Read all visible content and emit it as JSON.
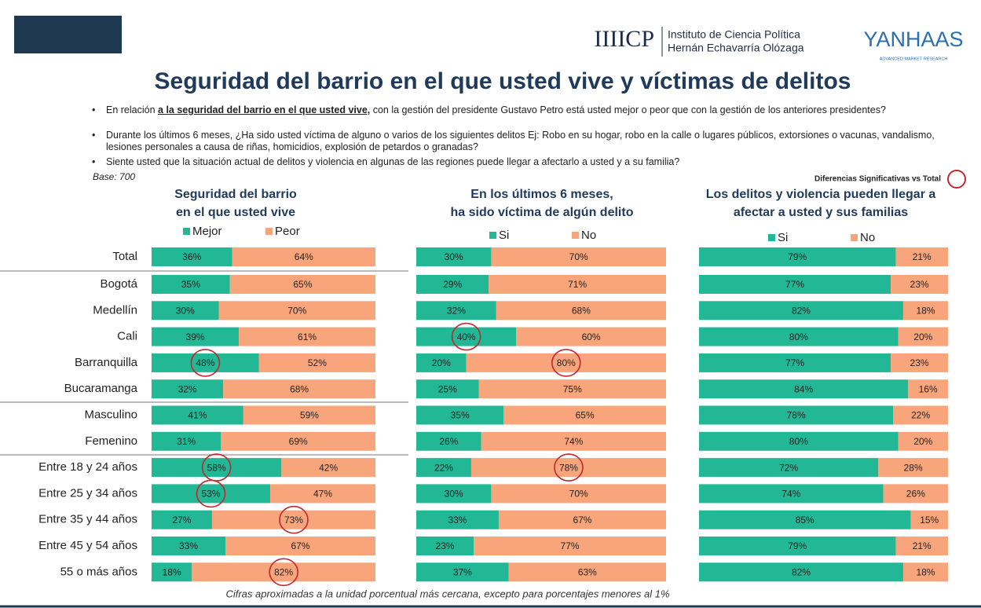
{
  "header": {
    "logo1": "IIIICP",
    "logo1_text": [
      "Instituto de Ciencia Política",
      "Hernán Echavarría Olózaga"
    ],
    "logo2": "YANHAAS",
    "logo2_sub": "ADVANCED MARKET RESEARCH"
  },
  "title": "Seguridad del barrio en el que usted vive y víctimas de delitos",
  "questions": [
    [
      "En relación ",
      "a la seguridad del barrio en el que usted vive,",
      " con la gestión del presidente Gustavo Petro está usted mejor o peor que con la gestión de los anteriores presidentes?"
    ],
    [
      "Durante los últimos 6 meses, ¿Ha sido usted víctima de alguno o varios de los siguientes delitos Ej: Robo en su hogar, robo en la calle o lugares públicos, extorsiones o vacunas, vandalismo, lesiones personales a causa de riñas, homicidios, explosión de petardos o granadas?"
    ],
    [
      "Siente usted que la situación actual  de delitos y violencia en algunas de las  regiones puede llegar a afectarlo  a usted y a su familia?"
    ]
  ],
  "base": "Base: 700",
  "significance_note": "Diferencias Significativas vs Total",
  "footnote": "Cifras aproximadas a la unidad porcentual más cercana, excepto para porcentajes menores al 1%",
  "categories": [
    "Total",
    "Bogotá",
    "Medellín",
    "Cali",
    "Barranquilla",
    "Bucaramanga",
    "Masculino",
    "Femenino",
    "Entre 18 y 24 años",
    "Entre 25 y 34 años",
    "Entre 35 y 44 años",
    "Entre 45 y 54 años",
    "55 o más años"
  ],
  "chart_data": [
    {
      "type": "stacked-bar",
      "title": [
        "Seguridad del barrio",
        "en el que usted vive"
      ],
      "xlim": [
        0,
        100
      ],
      "series": [
        {
          "name": "Mejor",
          "color": "#22b795",
          "values": [
            36,
            35,
            30,
            39,
            48,
            32,
            41,
            31,
            58,
            53,
            27,
            33,
            18
          ],
          "value_labels": [
            "36%",
            "35%",
            "30%",
            "39%",
            "48%",
            "32%",
            "41%",
            "31%",
            "58%",
            "53%",
            "27%",
            "33%",
            "18%"
          ],
          "circled": [
            4,
            8,
            9
          ]
        },
        {
          "name": "Peor",
          "color": "#f8a57b",
          "values": [
            64,
            65,
            70,
            61,
            52,
            68,
            59,
            69,
            42,
            47,
            73,
            67,
            82
          ],
          "value_labels": [
            "64%",
            "65%",
            "70%",
            "61%",
            "52%",
            "68%",
            "59%",
            "69%",
            "42%",
            "47%",
            "73%",
            "67%",
            "82%"
          ],
          "circled": [
            10,
            12
          ]
        }
      ]
    },
    {
      "type": "stacked-bar",
      "title": [
        "En los últimos 6 meses,",
        "ha sido víctima de algún delito"
      ],
      "xlim": [
        0,
        100
      ],
      "series": [
        {
          "name": "Si",
          "color": "#22b795",
          "values": [
            30,
            29,
            32,
            40,
            20,
            25,
            35,
            26,
            22,
            30,
            33,
            23,
            37
          ],
          "value_labels": [
            "30%",
            "29%",
            "32%",
            "40%",
            "20%",
            "25%",
            "35%",
            "26%",
            "22%",
            "30%",
            "33%",
            "23%",
            "37%"
          ],
          "circled": [
            3
          ]
        },
        {
          "name": "No",
          "color": "#f8a57b",
          "values": [
            70,
            71,
            68,
            60,
            80,
            75,
            65,
            74,
            78,
            70,
            67,
            77,
            63
          ],
          "value_labels": [
            "70%",
            "71%",
            "68%",
            "60%",
            "80%",
            "75%",
            "65%",
            "74%",
            "78%",
            "70%",
            "67%",
            "77%",
            "63%"
          ],
          "circled": [
            4,
            8
          ]
        }
      ]
    },
    {
      "type": "stacked-bar",
      "title": [
        "Los delitos y violencia pueden llegar a",
        "afectar a usted y sus familias"
      ],
      "xlim": [
        0,
        100
      ],
      "series": [
        {
          "name": "Si",
          "color": "#22b795",
          "values": [
            79,
            77,
            82,
            80,
            77,
            84,
            78,
            80,
            72,
            74,
            85,
            79,
            82
          ],
          "value_labels": [
            "79%",
            "77%",
            "82%",
            "80%",
            "77%",
            "84%",
            "78%",
            "80%",
            "72%",
            "74%",
            "85%",
            "79%",
            "82%"
          ],
          "circled": []
        },
        {
          "name": "No",
          "color": "#f8a57b",
          "values": [
            21,
            23,
            18,
            20,
            23,
            16,
            22,
            20,
            28,
            26,
            15,
            21,
            18
          ],
          "value_labels": [
            "21%",
            "23%",
            "18%",
            "20%",
            "23%",
            "16%",
            "22%",
            "20%",
            "28%",
            "26%",
            "15%",
            "21%",
            "18%"
          ],
          "circled": []
        }
      ]
    }
  ]
}
